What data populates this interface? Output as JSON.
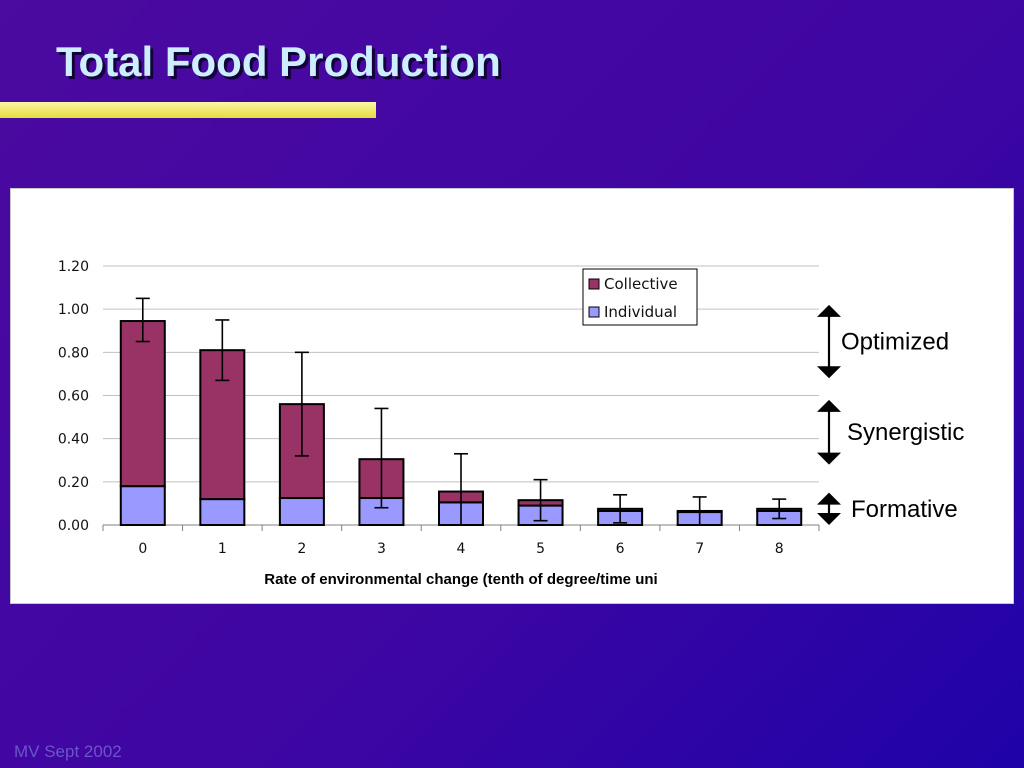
{
  "slide": {
    "title": "Total Food Production",
    "footer": "MV Sept 2002"
  },
  "colors": {
    "collective": "#993366",
    "individual": "#9999ff",
    "axis": "#808080",
    "gridline": "#c0c0c0"
  },
  "chart_data": {
    "type": "bar",
    "stacked": true,
    "title": "",
    "categories": [
      "0",
      "1",
      "2",
      "3",
      "4",
      "5",
      "6",
      "7",
      "8"
    ],
    "series": [
      {
        "name": "Individual",
        "values": [
          0.18,
          0.12,
          0.125,
          0.125,
          0.105,
          0.09,
          0.065,
          0.06,
          0.065
        ]
      },
      {
        "name": "Collective",
        "values": [
          0.765,
          0.69,
          0.435,
          0.18,
          0.05,
          0.025,
          0.01,
          0.005,
          0.01
        ]
      }
    ],
    "error_bars": [
      {
        "low": 0.85,
        "high": 1.05
      },
      {
        "low": 0.67,
        "high": 0.95
      },
      {
        "low": 0.32,
        "high": 0.8
      },
      {
        "low": 0.08,
        "high": 0.54
      },
      {
        "low": 0.0,
        "high": 0.33
      },
      {
        "low": 0.02,
        "high": 0.21
      },
      {
        "low": 0.01,
        "high": 0.14
      },
      {
        "low": 0.0,
        "high": 0.13
      },
      {
        "low": 0.03,
        "high": 0.12
      }
    ],
    "y_ticks": [
      "0.00",
      "0.20",
      "0.40",
      "0.60",
      "0.80",
      "1.00",
      "1.20"
    ],
    "xlabel": "Rate of environmental change (tenth of degree/time uni",
    "ylabel": "",
    "ylim": [
      0,
      1.2
    ],
    "grid": true,
    "legend": {
      "position": "top-right",
      "entries": [
        "Collective",
        "Individual"
      ]
    },
    "annotations": [
      {
        "label": "Optimized",
        "from": 1.02,
        "to": 0.68
      },
      {
        "label": "Synergistic",
        "from": 0.58,
        "to": 0.28
      },
      {
        "label": "Formative",
        "from": 0.15,
        "to": 0.0
      }
    ]
  }
}
